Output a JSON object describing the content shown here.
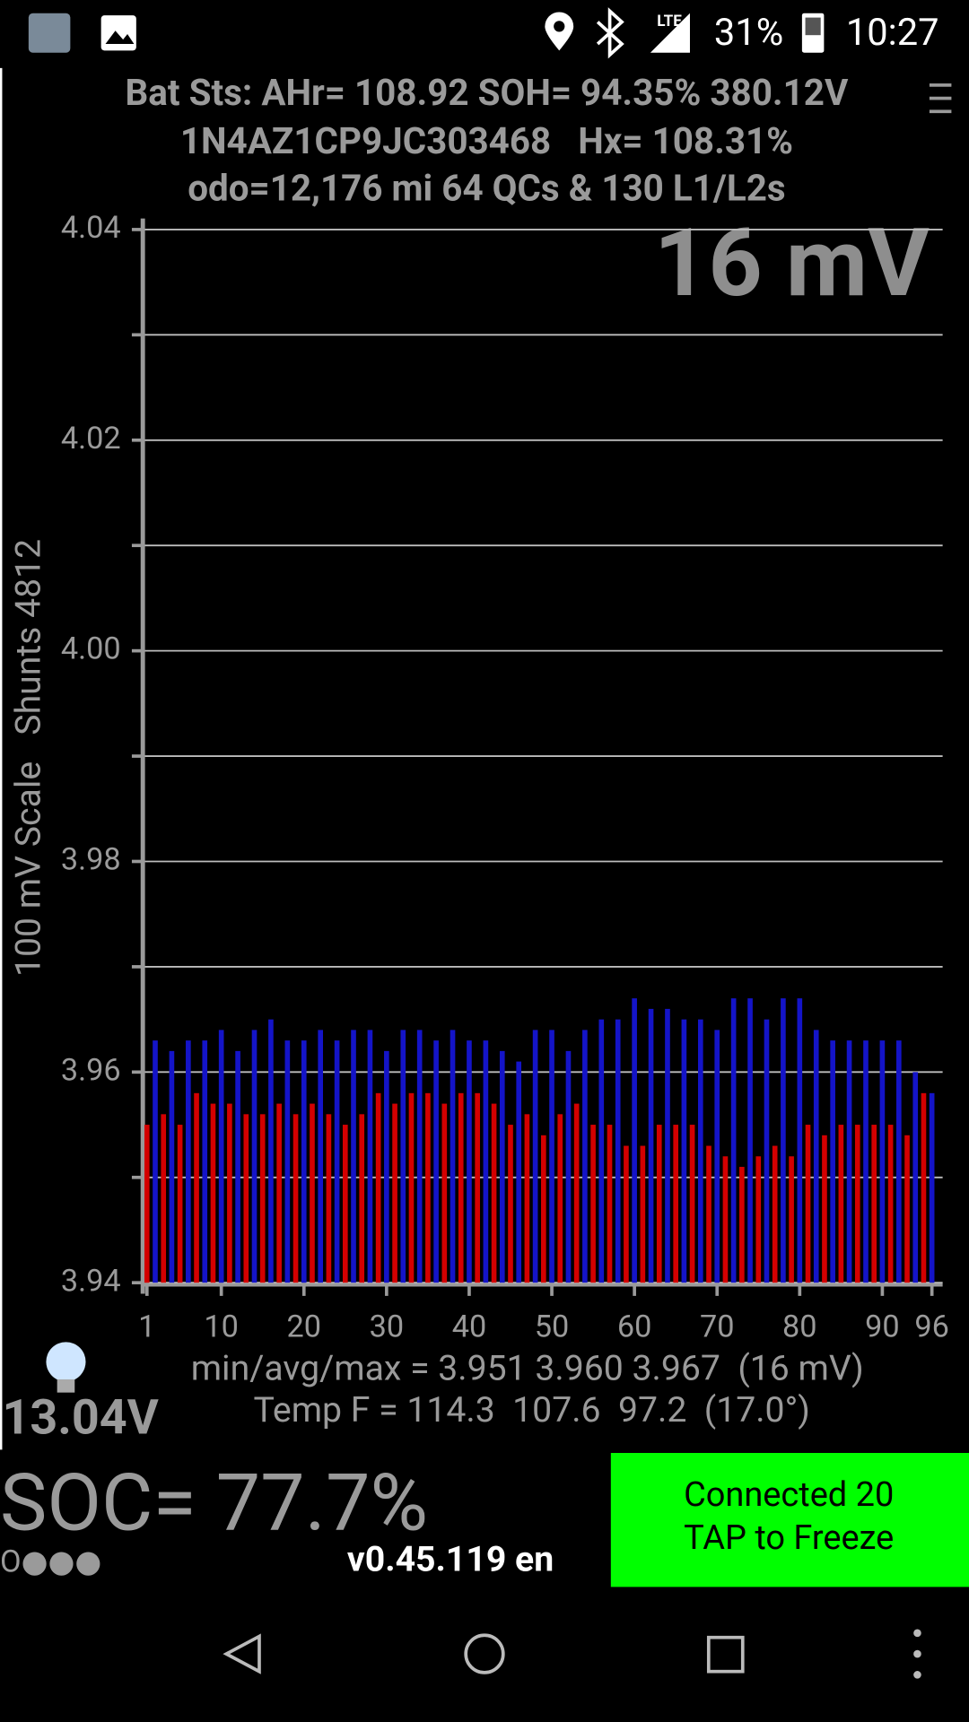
{
  "status_bar": {
    "network": "LTE",
    "battery": "31%",
    "time": "10:27"
  },
  "header": {
    "line1": "Bat Sts: AHr= 108.92 SOH= 94.35% 380.12V",
    "line2": "1N4AZ1CP9JC303468   Hx= 108.31%",
    "line3": "odo=12,176 mi 64 QCs & 130 L1/L2s"
  },
  "chart_data": {
    "type": "bar",
    "y_label": "100 mV Scale   Shunts 4812",
    "annotation": "16 mV",
    "x": [
      1,
      2,
      3,
      4,
      5,
      6,
      7,
      8,
      9,
      10,
      11,
      12,
      13,
      14,
      15,
      16,
      17,
      18,
      19,
      20,
      21,
      22,
      23,
      24,
      25,
      26,
      27,
      28,
      29,
      30,
      31,
      32,
      33,
      34,
      35,
      36,
      37,
      38,
      39,
      40,
      41,
      42,
      43,
      44,
      45,
      46,
      47,
      48,
      49,
      50,
      51,
      52,
      53,
      54,
      55,
      56,
      57,
      58,
      59,
      60,
      61,
      62,
      63,
      64,
      65,
      66,
      67,
      68,
      69,
      70,
      71,
      72,
      73,
      74,
      75,
      76,
      77,
      78,
      79,
      80,
      81,
      82,
      83,
      84,
      85,
      86,
      87,
      88,
      89,
      90,
      91,
      92,
      93,
      94,
      95,
      96
    ],
    "values": [
      3.955,
      3.963,
      3.956,
      3.962,
      3.955,
      3.963,
      3.958,
      3.963,
      3.957,
      3.964,
      3.957,
      3.962,
      3.956,
      3.964,
      3.956,
      3.965,
      3.957,
      3.963,
      3.956,
      3.963,
      3.957,
      3.964,
      3.956,
      3.963,
      3.955,
      3.964,
      3.956,
      3.964,
      3.958,
      3.962,
      3.957,
      3.964,
      3.958,
      3.964,
      3.958,
      3.963,
      3.957,
      3.964,
      3.958,
      3.963,
      3.958,
      3.963,
      3.957,
      3.962,
      3.955,
      3.961,
      3.956,
      3.964,
      3.954,
      3.964,
      3.956,
      3.962,
      3.957,
      3.964,
      3.955,
      3.965,
      3.955,
      3.965,
      3.953,
      3.967,
      3.953,
      3.966,
      3.955,
      3.966,
      3.955,
      3.965,
      3.955,
      3.965,
      3.953,
      3.964,
      3.952,
      3.967,
      3.951,
      3.967,
      3.952,
      3.965,
      3.953,
      3.967,
      3.952,
      3.967,
      3.955,
      3.964,
      3.954,
      3.963,
      3.955,
      3.963,
      3.955,
      3.963,
      3.955,
      3.963,
      3.955,
      3.963,
      3.954,
      3.96,
      3.958,
      3.958
    ],
    "bar_colors": [
      "#d40000",
      "#1414c8"
    ],
    "xlim": [
      0.5,
      96.5
    ],
    "xticks": [
      1,
      10,
      20,
      30,
      40,
      50,
      60,
      70,
      80,
      90,
      96
    ],
    "ylim": [
      3.94,
      4.04
    ],
    "yticks": [
      3.94,
      3.96,
      3.98,
      {
        "value": 4,
        "label": "4.00"
      },
      4.02,
      4.04
    ],
    "minor_yticks": [
      3.95,
      3.97,
      3.99,
      4.01,
      4.03
    ],
    "grid": true
  },
  "footer": {
    "stats": "min/avg/max = 3.951 3.960 3.967  (16 mV)",
    "temp": "Temp F = 114.3  107.6  97.2  (17.0°)",
    "voltage": "13.04V",
    "soc": "SOC= 77.7%",
    "dots": "O●●●",
    "version": "v0.45.119 en",
    "button": {
      "line1": "Connected 20",
      "line2": "TAP to Freeze"
    }
  }
}
